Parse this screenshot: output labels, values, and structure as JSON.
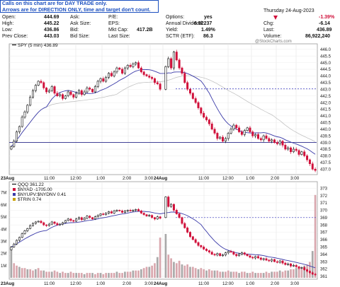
{
  "annotation": {
    "line1": "Calls on this chart are for DAY TRADE only.",
    "line2": "Arrows are for DIRECTION ONLY, time and target don't count."
  },
  "watermark": "@StockCharts.com",
  "header": {
    "date": "Thursday 24-Aug-2023",
    "change_pct": "-1.39%",
    "change_arrow": "down-triangle-icon",
    "fields": [
      {
        "label": "Open:",
        "value": "444.69"
      },
      {
        "label": "High:",
        "value": "445.22"
      },
      {
        "label": "Low:",
        "value": "436.86"
      },
      {
        "label": "Prev Close:",
        "value": "443.03"
      },
      {
        "label": "Ask:",
        "value": ""
      },
      {
        "label": "Ask Size:",
        "value": ""
      },
      {
        "label": "Bid:",
        "value": ""
      },
      {
        "label": "Bid Size:",
        "value": ""
      },
      {
        "label": "P/E:",
        "value": ""
      },
      {
        "label": "EPS:",
        "value": ""
      },
      {
        "label": "Mkt Cap:",
        "value": "417.2B"
      },
      {
        "label": "Last Size:",
        "value": ""
      },
      {
        "label": "Options:",
        "value": "yes"
      },
      {
        "label": "Annual Dividend:",
        "value": "6.52237"
      },
      {
        "label": "Yield:",
        "value": "1.49%"
      },
      {
        "label": "SCTR (ETF):",
        "value": "86.3"
      },
      {
        "label": "Chg:",
        "value": "-6.14"
      },
      {
        "label": "Last:",
        "value": "436.89"
      },
      {
        "label": "Volume:",
        "value": "86,922,240"
      }
    ]
  },
  "colors": {
    "up": "#111111",
    "down": "#d0103a",
    "ma": "#3a3aa8",
    "ma_slow": "#bbbbbb",
    "dash": "#5050c8",
    "volume_bar": "#d9a7ae",
    "volume_bar_dark": "#a9a9a9",
    "header_red": "#d0103a"
  },
  "chart_data": [
    {
      "type": "candlestick",
      "legend": "SPY (5 min) 436.89",
      "x_ticks": [
        "23Aug",
        "11:00",
        "12:00",
        "1:00",
        "2:00",
        "3:00",
        "24Aug",
        "11:00",
        "12:00",
        "1:00",
        "2:00",
        "3:00"
      ],
      "y_ticks": [
        "446.0",
        "445.5",
        "445.0",
        "444.5",
        "444.0",
        "443.5",
        "443.0",
        "442.5",
        "442.0",
        "441.5",
        "441.0",
        "440.5",
        "440.0",
        "439.5",
        "439.0",
        "438.5",
        "438.0",
        "437.5",
        "437.0"
      ],
      "ylim": [
        436.8,
        446.2
      ],
      "horizontal_lines": [
        443.03,
        439.0
      ],
      "day1_close_path": [
        438.7,
        439.1,
        439.8,
        440.2,
        440.9,
        441.3,
        441.8,
        442.4,
        442.9,
        443.3,
        443.6,
        443.5,
        443.1,
        442.8,
        442.9,
        443.2,
        442.7,
        442.5,
        442.6,
        442.3,
        442.5,
        442.8,
        442.6,
        442.4,
        442.7,
        442.9,
        442.6,
        442.8,
        443.1,
        443.0,
        442.8,
        443.2,
        443.6,
        443.8,
        443.6,
        443.9,
        444.2,
        444.0,
        444.3,
        444.6,
        444.5,
        444.2,
        444.6,
        444.8,
        444.7,
        444.9,
        445.0,
        444.6,
        444.3,
        444.1,
        444.0,
        443.9,
        443.8,
        443.5,
        443.4,
        443.0
      ],
      "day2_close_path": [
        444.7,
        445.3,
        444.6,
        445.8,
        445.2,
        444.6,
        444.2,
        443.5,
        443.0,
        442.7,
        442.3,
        442.0,
        441.6,
        441.2,
        440.9,
        440.7,
        440.4,
        440.0,
        439.7,
        439.3,
        439.4,
        439.1,
        439.3,
        439.7,
        440.0,
        440.3,
        440.1,
        439.8,
        439.6,
        439.9,
        440.1,
        439.8,
        439.5,
        439.6,
        439.3,
        439.2,
        439.5,
        439.3,
        439.1,
        439.2,
        439.0,
        438.9,
        439.1,
        438.8,
        438.5,
        438.6,
        438.3,
        438.5,
        438.4,
        438.1,
        438.3,
        438.0,
        437.7,
        437.4,
        437.0,
        436.9
      ]
    },
    {
      "type": "candlestick-volume",
      "legends": [
        "QQQ 361.22",
        "$NYAD -1705.00",
        "$NYUPV:$NYDNV 0.41",
        "$TRIN 0.74"
      ],
      "legend_icons": [
        "dash-icon",
        "square-icon",
        "square-icon",
        "square-icon"
      ],
      "volume_ticks": [
        "7M",
        "6M",
        "5M",
        "4M",
        "3M",
        "2M",
        "1M"
      ],
      "price_ticks": [
        "373",
        "372",
        "371",
        "370",
        "369",
        "368",
        "367",
        "366",
        "365",
        "364",
        "363",
        "362",
        "361"
      ],
      "ylim": [
        360.8,
        373.4
      ],
      "volume_ylim": [
        0,
        7.6
      ],
      "horizontal_lines": [
        369.0
      ],
      "x_ticks": [
        "23Aug",
        "11:00",
        "12:00",
        "1:00",
        "2:00",
        "3:00",
        "24Aug",
        "11:00",
        "12:00",
        "1:00",
        "2:00",
        "3:00"
      ],
      "day1_close_path": [
        365.0,
        365.4,
        365.9,
        366.3,
        366.8,
        367.2,
        367.5,
        367.9,
        368.2,
        368.4,
        368.5,
        368.3,
        368.0,
        367.9,
        368.1,
        368.4,
        368.2,
        368.0,
        368.1,
        368.3,
        368.6,
        368.8,
        368.6,
        368.5,
        368.8,
        369.0,
        368.7,
        368.9,
        369.2,
        369.0,
        368.8,
        369.1,
        369.3,
        369.5,
        369.4,
        369.6,
        369.8,
        369.6,
        369.9,
        370.0,
        369.9,
        369.7,
        369.9,
        370.0,
        369.9,
        370.0,
        370.1,
        369.9,
        369.6,
        369.4,
        369.2,
        369.3,
        369.0,
        368.8,
        369.1,
        368.9
      ],
      "day2_close_path": [
        371.8,
        370.5,
        370.8,
        370.0,
        369.5,
        369.0,
        368.2,
        367.6,
        367.0,
        366.4,
        366.0,
        365.6,
        365.2,
        365.0,
        364.7,
        364.5,
        364.3,
        364.0,
        363.9,
        364.1,
        363.8,
        363.9,
        364.2,
        364.4,
        364.3,
        364.0,
        363.8,
        364.0,
        364.2,
        364.0,
        363.8,
        363.6,
        363.5,
        363.7,
        363.5,
        363.3,
        363.4,
        363.2,
        363.1,
        363.3,
        363.0,
        362.9,
        363.1,
        362.8,
        362.6,
        362.7,
        362.4,
        362.5,
        362.3,
        362.1,
        362.2,
        361.9,
        361.7,
        361.5,
        361.3,
        361.2
      ],
      "day1_volume_m": [
        2.6,
        1.2,
        1.0,
        0.9,
        0.8,
        0.8,
        0.7,
        0.7,
        0.6,
        0.7,
        0.8,
        0.6,
        0.6,
        0.5,
        0.5,
        0.5,
        0.6,
        0.5,
        0.4,
        0.5,
        0.4,
        0.4,
        0.5,
        0.4,
        0.4,
        0.4,
        0.4,
        0.3,
        0.4,
        0.4,
        0.4,
        0.3,
        0.4,
        0.4,
        0.3,
        0.4,
        0.4,
        0.4,
        0.4,
        0.5,
        0.4,
        0.4,
        0.5,
        0.5,
        0.5,
        0.6,
        0.6,
        0.6,
        0.7,
        0.8,
        0.9,
        0.9,
        1.0,
        1.2,
        1.7,
        3.3
      ],
      "day2_volume_m": [
        3.6,
        1.9,
        1.6,
        1.3,
        1.2,
        1.4,
        1.1,
        1.0,
        1.1,
        0.9,
        0.9,
        0.8,
        0.7,
        0.8,
        0.7,
        0.6,
        0.7,
        0.6,
        0.6,
        0.6,
        0.5,
        0.5,
        0.5,
        0.6,
        0.5,
        0.5,
        0.5,
        0.4,
        0.5,
        0.5,
        0.4,
        0.4,
        0.5,
        0.4,
        0.4,
        0.4,
        0.4,
        0.5,
        0.4,
        0.5,
        0.5,
        0.5,
        0.6,
        0.5,
        0.6,
        0.6,
        0.7,
        0.7,
        0.8,
        0.8,
        0.9,
        1.0,
        1.1,
        1.3,
        2.2,
        6.8
      ]
    }
  ]
}
